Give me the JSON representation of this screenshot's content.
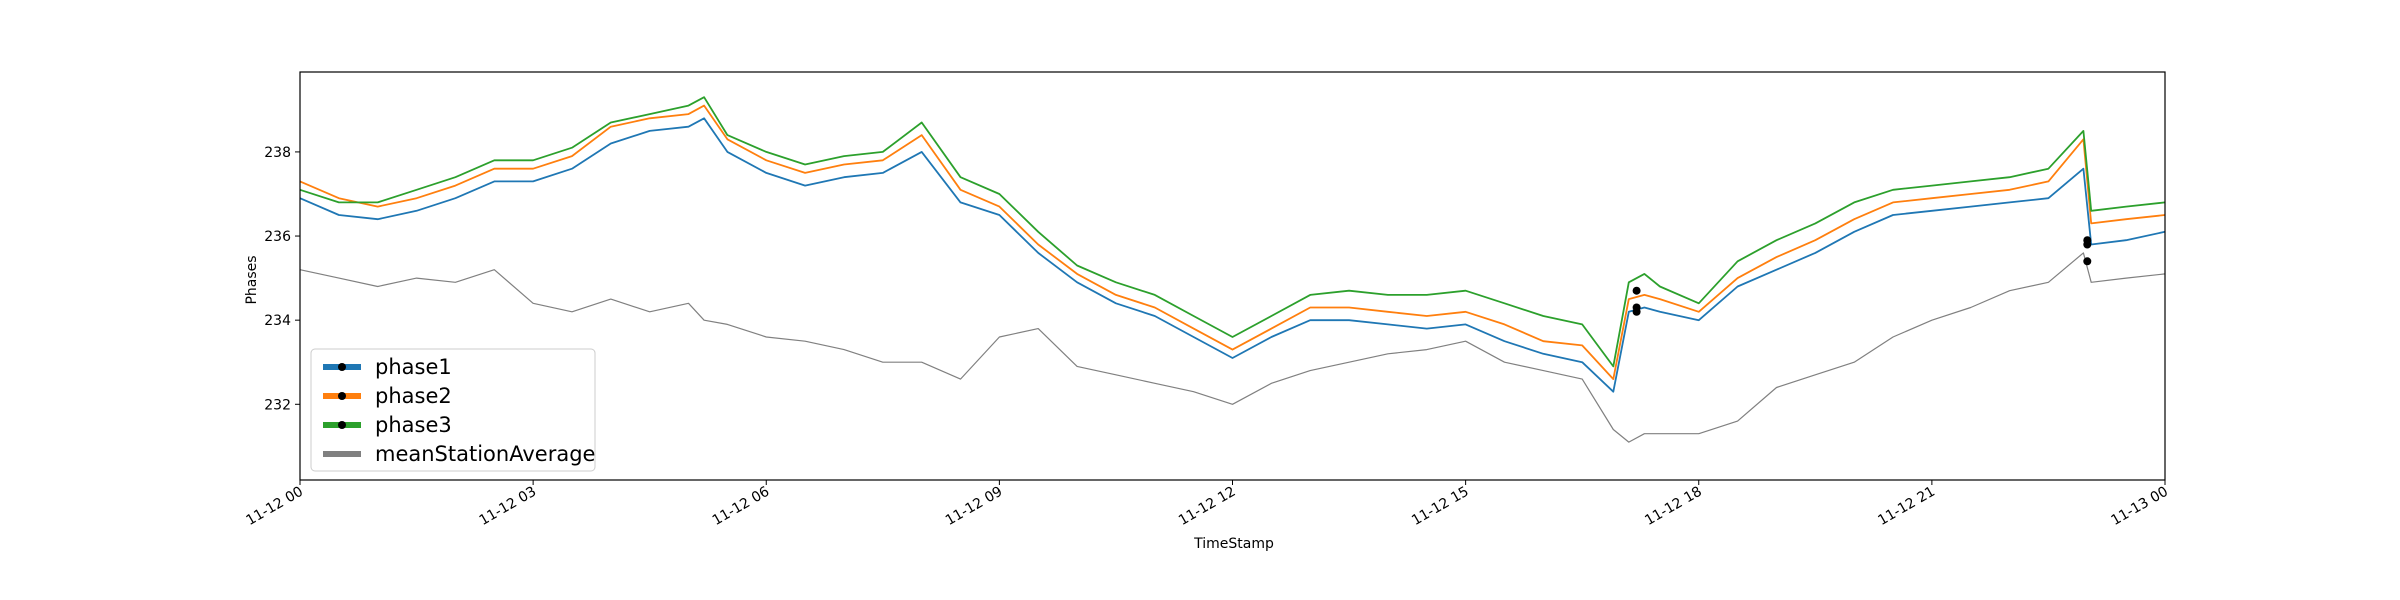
{
  "chart_data": {
    "type": "line",
    "title": "",
    "xlabel": "TimeStamp",
    "ylabel": "Phases",
    "xlim": [
      "2023-11-12 00:00",
      "2023-11-13 00:00"
    ],
    "ylim": [
      230.2,
      239.9
    ],
    "grid": false,
    "legend_position": "lower-left",
    "x_tick_labels": [
      "11-12 00",
      "11-12 03",
      "11-12 06",
      "11-12 09",
      "11-12 12",
      "11-12 15",
      "11-12 18",
      "11-12 21",
      "11-13 00"
    ],
    "y_ticks": [
      232,
      234,
      236,
      238
    ],
    "x_hours": [
      0,
      0.5,
      1,
      1.5,
      2,
      2.5,
      3,
      3.5,
      4,
      4.5,
      5,
      5.2,
      5.5,
      6,
      6.5,
      7,
      7.5,
      8,
      8.5,
      9,
      9.5,
      10,
      10.5,
      11,
      11.5,
      12,
      12.5,
      13,
      13.5,
      14,
      14.5,
      15,
      15.5,
      16,
      16.5,
      16.9,
      17.1,
      17.3,
      17.5,
      18,
      18.5,
      19,
      19.5,
      20,
      20.5,
      21,
      21.5,
      22,
      22.5,
      22.95,
      23.05,
      23.5,
      24
    ],
    "series": [
      {
        "name": "phase1",
        "color": "#1f77b4",
        "values": [
          236.9,
          236.5,
          236.4,
          236.6,
          236.9,
          237.3,
          237.3,
          237.6,
          238.2,
          238.5,
          238.6,
          238.8,
          238.0,
          237.5,
          237.2,
          237.4,
          237.5,
          238.0,
          236.8,
          236.5,
          235.6,
          234.9,
          234.4,
          234.1,
          233.6,
          233.1,
          233.6,
          234.0,
          234.0,
          233.9,
          233.8,
          233.9,
          233.5,
          233.2,
          233.0,
          232.3,
          234.2,
          234.3,
          234.2,
          234.0,
          234.8,
          235.2,
          235.6,
          236.1,
          236.5,
          236.6,
          236.7,
          236.8,
          236.9,
          237.6,
          235.8,
          235.9,
          236.1
        ]
      },
      {
        "name": "phase2",
        "color": "#ff7f0e",
        "values": [
          237.3,
          236.9,
          236.7,
          236.9,
          237.2,
          237.6,
          237.6,
          237.9,
          238.6,
          238.8,
          238.9,
          239.1,
          238.3,
          237.8,
          237.5,
          237.7,
          237.8,
          238.4,
          237.1,
          236.7,
          235.8,
          235.1,
          234.6,
          234.3,
          233.8,
          233.3,
          233.8,
          234.3,
          234.3,
          234.2,
          234.1,
          234.2,
          233.9,
          233.5,
          233.4,
          232.6,
          234.5,
          234.6,
          234.5,
          234.2,
          235.0,
          235.5,
          235.9,
          236.4,
          236.8,
          236.9,
          237.0,
          237.1,
          237.3,
          238.3,
          236.3,
          236.4,
          236.5
        ]
      },
      {
        "name": "phase3",
        "color": "#2ca02c",
        "values": [
          237.1,
          236.8,
          236.8,
          237.1,
          237.4,
          237.8,
          237.8,
          238.1,
          238.7,
          238.9,
          239.1,
          239.3,
          238.4,
          238.0,
          237.7,
          237.9,
          238.0,
          238.7,
          237.4,
          237.0,
          236.1,
          235.3,
          234.9,
          234.6,
          234.1,
          233.6,
          234.1,
          234.6,
          234.7,
          234.6,
          234.6,
          234.7,
          234.4,
          234.1,
          233.9,
          232.9,
          234.9,
          235.1,
          234.8,
          234.4,
          235.4,
          235.9,
          236.3,
          236.8,
          237.1,
          237.2,
          237.3,
          237.4,
          237.6,
          238.5,
          236.6,
          236.7,
          236.8
        ]
      },
      {
        "name": "meanStationAverage",
        "color": "#808080",
        "values": [
          235.2,
          235.0,
          234.8,
          235.0,
          234.9,
          235.2,
          234.4,
          234.2,
          234.5,
          234.2,
          234.4,
          234.0,
          233.9,
          233.6,
          233.5,
          233.3,
          233.0,
          233.0,
          232.6,
          233.6,
          233.8,
          232.9,
          232.7,
          232.5,
          232.3,
          232.0,
          232.5,
          232.8,
          233.0,
          233.2,
          233.3,
          233.5,
          233.0,
          232.8,
          232.6,
          231.4,
          231.1,
          231.3,
          231.3,
          231.3,
          231.6,
          232.4,
          232.7,
          233.0,
          233.6,
          234.0,
          234.3,
          234.7,
          234.9,
          235.6,
          234.9,
          235.0,
          235.1
        ]
      }
    ],
    "markers": [
      {
        "series": "phase1",
        "x": 17.2,
        "y": 234.3
      },
      {
        "series": "phase2",
        "x": 17.2,
        "y": 234.2
      },
      {
        "series": "phase3",
        "x": 17.2,
        "y": 234.7
      },
      {
        "series": "phase1",
        "x": 23.0,
        "y": 235.4
      },
      {
        "series": "phase2",
        "x": 23.0,
        "y": 235.8
      },
      {
        "series": "phase3",
        "x": 23.0,
        "y": 235.9
      }
    ],
    "legend": [
      {
        "label": "phase1",
        "color": "#1f77b4",
        "marker": true
      },
      {
        "label": "phase2",
        "color": "#ff7f0e",
        "marker": true
      },
      {
        "label": "phase3",
        "color": "#2ca02c",
        "marker": true
      },
      {
        "label": "meanStationAverage",
        "color": "#808080",
        "marker": false
      }
    ]
  }
}
